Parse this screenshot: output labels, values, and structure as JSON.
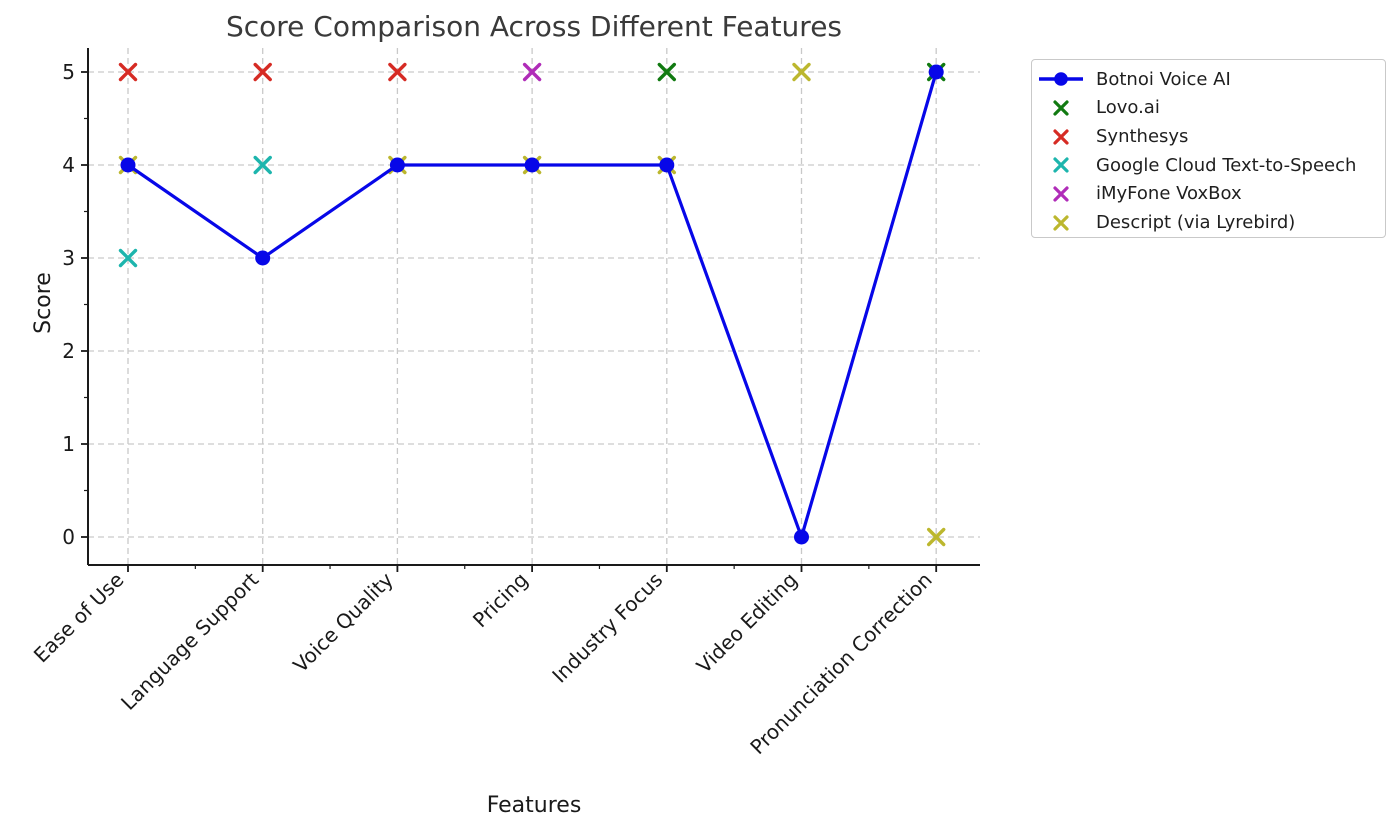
{
  "chart_data": {
    "type": "line+scatter",
    "title": "Score Comparison Across Different Features",
    "xlabel": "Features",
    "ylabel": "Score",
    "ylim": [
      0,
      5
    ],
    "yticks": [
      0,
      1,
      2,
      3,
      4,
      5
    ],
    "grid": "dashed-both-axes",
    "legend_position": "outside-upper-right",
    "categories": [
      "Ease of Use",
      "Language Support",
      "Voice Quality",
      "Pricing",
      "Industry Focus",
      "Video Editing",
      "Pronunciation Correction"
    ],
    "series": [
      {
        "name": "Botnoi Voice AI",
        "type": "line",
        "marker": "circle",
        "color": "#0707e8",
        "values": [
          4,
          3,
          4,
          4,
          4,
          0,
          5
        ]
      },
      {
        "name": "Lovo.ai",
        "type": "scatter",
        "marker": "x",
        "color": "#117a11",
        "values": [
          null,
          null,
          null,
          null,
          5,
          null,
          5
        ]
      },
      {
        "name": "Synthesys",
        "type": "scatter",
        "marker": "x",
        "color": "#d62b24",
        "values": [
          5,
          5,
          5,
          null,
          null,
          null,
          null
        ]
      },
      {
        "name": "Google Cloud Text-to-Speech",
        "type": "scatter",
        "marker": "x",
        "color": "#1db5ad",
        "values": [
          3,
          4,
          null,
          null,
          null,
          null,
          null
        ]
      },
      {
        "name": "iMyFone VoxBox",
        "type": "scatter",
        "marker": "x",
        "color": "#b02cb8",
        "values": [
          null,
          null,
          null,
          5,
          null,
          null,
          null
        ]
      },
      {
        "name": "Descript (via Lyrebird)",
        "type": "scatter",
        "marker": "x",
        "color": "#bcb72e",
        "values": [
          4,
          null,
          4,
          4,
          4,
          5,
          0
        ]
      }
    ]
  }
}
